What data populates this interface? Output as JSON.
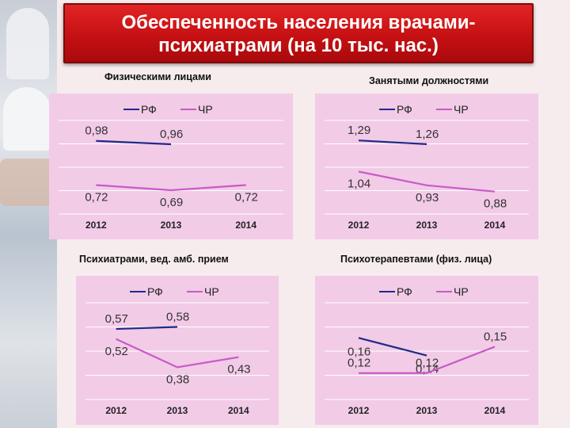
{
  "header": {
    "title_line1": "Обеспеченность населения врачами-",
    "title_line2": "психиатрами (на 10 тыс. нас.)"
  },
  "panels": [
    {
      "subtitle": "Физическими лицами"
    },
    {
      "subtitle": "Занятыми должностями"
    },
    {
      "subtitle": "Психиатрами, вед. амб. прием"
    },
    {
      "subtitle": "Психотерапевтами (физ. лица)"
    }
  ],
  "colors": {
    "rf": "#1f2a8a",
    "chr": "#c85bc6",
    "panel_bg": "#f2cbe7",
    "header_red": "#c9111a"
  },
  "chart_data": [
    {
      "type": "line",
      "title": "Физическими лицами",
      "categories": [
        "2012",
        "2013",
        "2014"
      ],
      "series": [
        {
          "name": "РФ",
          "values": [
            0.98,
            0.96,
            null
          ],
          "labels": [
            "0,98",
            "0,96",
            ""
          ]
        },
        {
          "name": "ЧР",
          "values": [
            0.72,
            0.69,
            0.72
          ],
          "labels": [
            "0,72",
            "0,69",
            "0,72"
          ]
        }
      ],
      "grid": true,
      "legend": "top"
    },
    {
      "type": "line",
      "title": "Занятыми должностями",
      "categories": [
        "2012",
        "2013",
        "2014"
      ],
      "series": [
        {
          "name": "РФ",
          "values": [
            1.29,
            1.26,
            null
          ],
          "labels": [
            "1,29",
            "1,26",
            ""
          ]
        },
        {
          "name": "ЧР",
          "values": [
            1.04,
            0.93,
            0.88
          ],
          "labels": [
            "1,04",
            "0,93",
            "0,88"
          ]
        }
      ],
      "grid": true,
      "legend": "top"
    },
    {
      "type": "line",
      "title": "Психиатрами, вед. амб. прием",
      "categories": [
        "2012",
        "2013",
        "2014"
      ],
      "series": [
        {
          "name": "РФ",
          "values": [
            0.57,
            0.58,
            null
          ],
          "labels": [
            "0,57",
            "0,58",
            ""
          ]
        },
        {
          "name": "ЧР",
          "values": [
            0.52,
            0.38,
            0.43
          ],
          "labels": [
            "0,52",
            "0,38",
            "0,43"
          ]
        }
      ],
      "grid": true,
      "legend": "top"
    },
    {
      "type": "line",
      "title": "Психотерапевтами (физ. лица)",
      "categories": [
        "2012",
        "2013",
        "2014"
      ],
      "series": [
        {
          "name": "РФ",
          "values": [
            0.16,
            0.14,
            null
          ],
          "labels": [
            "0,16",
            "0,14",
            ""
          ]
        },
        {
          "name": "ЧР",
          "values": [
            0.12,
            0.12,
            0.15
          ],
          "labels": [
            "0,12",
            "0,12",
            "0,15"
          ]
        }
      ],
      "grid": true,
      "legend": "top"
    }
  ]
}
